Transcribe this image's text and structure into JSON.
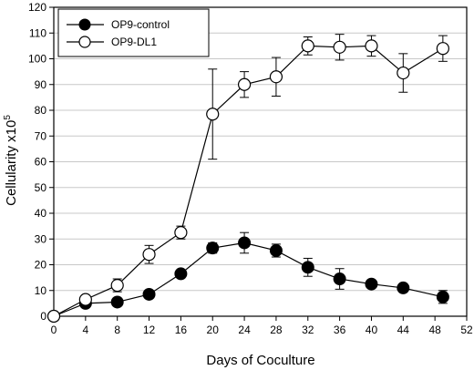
{
  "chart_data": {
    "type": "line",
    "xlabel": "Days of Coculture",
    "ylabel": "Cellularity x10",
    "ylabel_sup": "5",
    "xlim": [
      0,
      52
    ],
    "ylim": [
      0,
      120
    ],
    "xticks": [
      0,
      4,
      8,
      12,
      16,
      20,
      24,
      28,
      32,
      36,
      40,
      44,
      48,
      52
    ],
    "yticks": [
      0,
      10,
      20,
      30,
      40,
      50,
      60,
      70,
      80,
      90,
      100,
      110,
      120
    ],
    "grid": "horizontal",
    "legend_position": "top-left",
    "series": [
      {
        "name": "OP9-control",
        "marker": "filled-circle",
        "color": "#000000",
        "x": [
          0,
          4,
          8,
          12,
          16,
          20,
          24,
          28,
          32,
          36,
          40,
          44,
          49
        ],
        "y": [
          0,
          5,
          5.5,
          8.5,
          16.5,
          26.5,
          28.5,
          25.5,
          19,
          14.5,
          12.5,
          11,
          7.5
        ],
        "err": [
          0.5,
          1.5,
          1.5,
          1.5,
          1.5,
          2,
          4,
          2.5,
          3.5,
          4,
          1.5,
          1.5,
          2.5
        ]
      },
      {
        "name": "OP9-DL1",
        "marker": "open-circle",
        "color": "#000000",
        "x": [
          0,
          4,
          8,
          12,
          16,
          20,
          24,
          28,
          32,
          36,
          40,
          44,
          49
        ],
        "y": [
          0,
          6.5,
          12,
          24,
          32.5,
          78.5,
          90,
          93,
          105,
          104.5,
          105,
          94.5,
          104
        ],
        "err": [
          0.5,
          1.5,
          2.5,
          3.5,
          2.5,
          17.5,
          5,
          7.5,
          3.5,
          5,
          4,
          7.5,
          5
        ]
      }
    ]
  }
}
